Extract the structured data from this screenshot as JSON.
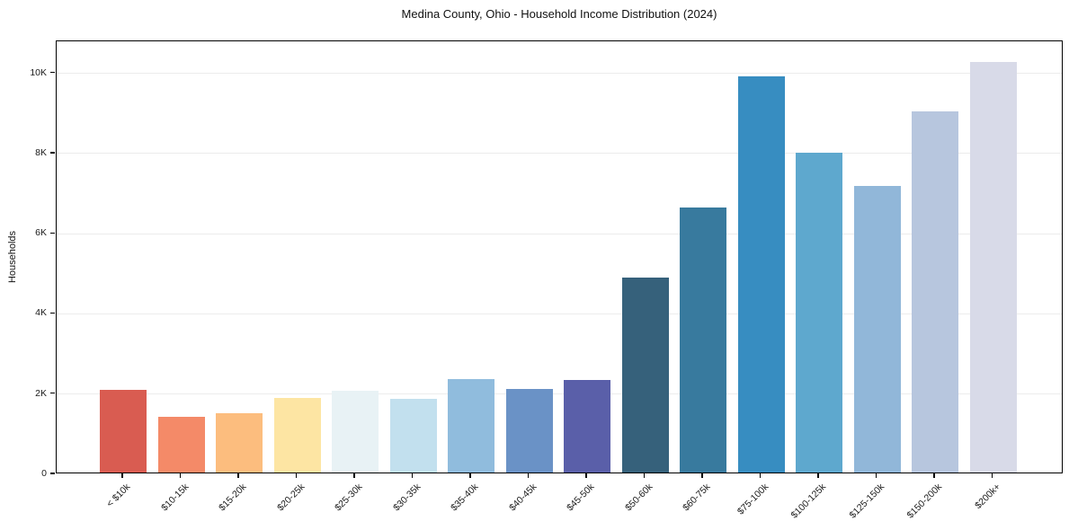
{
  "chart_data": {
    "type": "bar",
    "title": "Medina County, Ohio - Household Income Distribution (2024)",
    "xlabel": "",
    "ylabel": "Households",
    "categories": [
      "< $10k",
      "$10-15k",
      "$15-20k",
      "$20-25k",
      "$25-30k",
      "$30-35k",
      "$35-40k",
      "$40-45k",
      "$45-50k",
      "$50-60k",
      "$60-75k",
      "$75-100k",
      "$100-125k",
      "$125-150k",
      "$150-200k",
      "$200k+"
    ],
    "values": [
      2060,
      1390,
      1480,
      1850,
      2050,
      1840,
      2330,
      2090,
      2310,
      4870,
      6610,
      9890,
      7980,
      7140,
      9000,
      10250
    ],
    "bar_colors": [
      "#d95c51",
      "#f48a68",
      "#fcbd7e",
      "#fde5a3",
      "#e8f2f5",
      "#c2e0ee",
      "#90bcdd",
      "#6a92c6",
      "#5a5fa9",
      "#36617b",
      "#387a9e",
      "#378dc1",
      "#5ea8ce",
      "#91b7d9",
      "#b7c6de",
      "#d8dae8"
    ],
    "ylim": [
      0,
      10800
    ],
    "yticks": [
      {
        "label": "0",
        "value": 0
      },
      {
        "label": "2K",
        "value": 2000
      },
      {
        "label": "4K",
        "value": 4000
      },
      {
        "label": "6K",
        "value": 6000
      },
      {
        "label": "8K",
        "value": 8000
      },
      {
        "label": "10K",
        "value": 10000
      }
    ],
    "grid": "horizontal-light",
    "legend": "none",
    "x_tick_label_rotation_deg": 45,
    "background": "#ffffff",
    "frame_color": "#000000"
  }
}
